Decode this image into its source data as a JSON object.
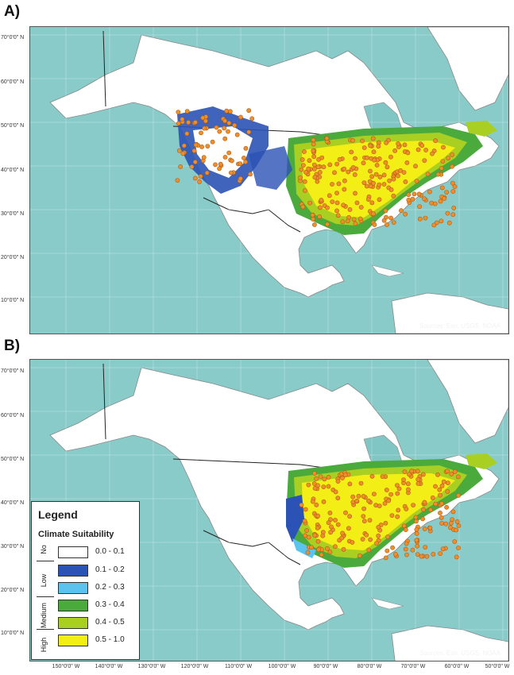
{
  "panels": [
    {
      "label": "A)",
      "sources": "Sources: Esri, USGS, NOAA"
    },
    {
      "label": "B)",
      "sources": "Sources: Esri, USGS, NOAA"
    }
  ],
  "latitude_labels": [
    "70°0'0\" N",
    "60°0'0\" N",
    "50°0'0\" N",
    "40°0'0\" N",
    "30°0'0\" N",
    "20°0'0\" N",
    "10°0'0\" N"
  ],
  "longitude_labels": [
    "150°0'0\" W",
    "140°0'0\" W",
    "130°0'0\" W",
    "120°0'0\" W",
    "110°0'0\" W",
    "100°0'0\" W",
    "90°0'0\" W",
    "80°0'0\" W",
    "70°0'0\" W",
    "60°0'0\" W",
    "50°0'0\" W"
  ],
  "legend": {
    "title": "Legend",
    "subtitle": "Climate Suitability",
    "groups": [
      "No",
      "Low",
      "Medium",
      "High"
    ],
    "classes": [
      {
        "range": "0.0 - 0.1",
        "color": "#ffffff"
      },
      {
        "range": "0.1 - 0.2",
        "color": "#2b52b5"
      },
      {
        "range": "0.2 - 0.3",
        "color": "#5bc3ee"
      },
      {
        "range": "0.3 - 0.4",
        "color": "#4aaa3c"
      },
      {
        "range": "0.4 - 0.5",
        "color": "#a9cf23"
      },
      {
        "range": "0.5 - 1.0",
        "color": "#f4ee17"
      }
    ]
  },
  "colors": {
    "ocean": "#7fc6c4",
    "land": "#ffffff",
    "border": "#222222",
    "occurrence": "#f08f2a"
  }
}
